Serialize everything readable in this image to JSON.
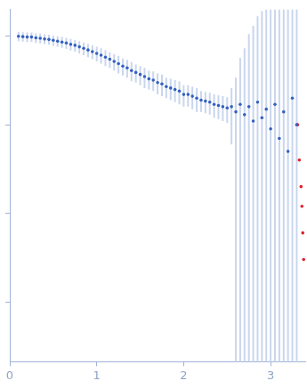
{
  "chart_data": {
    "type": "scatter",
    "log": "y",
    "grid": false,
    "tick_labels": "x",
    "xlim": [
      0,
      3.4
    ],
    "xticks": [
      0,
      1,
      2,
      3
    ],
    "ylim": [
      0.00021,
      2
    ],
    "yticks": [
      0.001,
      0.01,
      0.1,
      1
    ],
    "series": [
      {
        "color": "#3461c1",
        "marker": "circle",
        "x": [
          0.1,
          0.15,
          0.2,
          0.25,
          0.3,
          0.35,
          0.4,
          0.45,
          0.5,
          0.55,
          0.6,
          0.65,
          0.7,
          0.75,
          0.8,
          0.85,
          0.9,
          0.95,
          1.0,
          1.05,
          1.1,
          1.15,
          1.2,
          1.25,
          1.3,
          1.35,
          1.4,
          1.45,
          1.5,
          1.55,
          1.6,
          1.65,
          1.7,
          1.75,
          1.8,
          1.85,
          1.9,
          1.95,
          2.0,
          2.05,
          2.1,
          2.15,
          2.2,
          2.25,
          2.3,
          2.35,
          2.4,
          2.45,
          2.5,
          2.55,
          2.6,
          2.65,
          2.7,
          2.75,
          2.8,
          2.85,
          2.9,
          2.95,
          3.0,
          3.05,
          3.1,
          3.15,
          3.2,
          3.25,
          3.3
        ],
        "values": [
          1.0,
          0.99,
          0.98,
          0.98,
          0.96,
          0.95,
          0.93,
          0.92,
          0.9,
          0.88,
          0.86,
          0.84,
          0.81,
          0.79,
          0.76,
          0.73,
          0.7,
          0.67,
          0.64,
          0.61,
          0.58,
          0.55,
          0.52,
          0.49,
          0.46,
          0.44,
          0.41,
          0.39,
          0.37,
          0.35,
          0.33,
          0.32,
          0.3,
          0.29,
          0.27,
          0.26,
          0.25,
          0.24,
          0.22,
          0.22,
          0.21,
          0.2,
          0.19,
          0.185,
          0.18,
          0.17,
          0.165,
          0.16,
          0.155,
          0.16,
          0.14,
          0.17,
          0.13,
          0.16,
          0.11,
          0.18,
          0.12,
          0.15,
          0.09,
          0.17,
          0.07,
          0.14,
          0.05,
          0.2,
          0.1
        ],
        "errors": [
          0.12,
          0.12,
          0.12,
          0.12,
          0.12,
          0.12,
          0.12,
          0.12,
          0.12,
          0.12,
          0.12,
          0.12,
          0.12,
          0.12,
          0.12,
          0.12,
          0.12,
          0.12,
          0.12,
          0.12,
          0.12,
          0.11,
          0.11,
          0.11,
          0.1,
          0.1,
          0.1,
          0.09,
          0.09,
          0.09,
          0.08,
          0.08,
          0.08,
          0.08,
          0.07,
          0.07,
          0.07,
          0.07,
          0.06,
          0.06,
          0.06,
          0.06,
          0.05,
          0.05,
          0.05,
          0.05,
          0.05,
          0.05,
          0.05,
          0.1,
          0.2,
          0.4,
          0.6,
          0.9,
          1.2,
          1.5,
          1.8,
          2,
          2,
          2,
          2,
          2,
          2,
          2,
          2
        ]
      },
      {
        "color": "#e0202a",
        "marker": "circle",
        "x": [
          3.31,
          3.33,
          3.35,
          3.36,
          3.37,
          3.38
        ],
        "values": [
          0.1,
          0.04,
          0.02,
          0.012,
          0.006,
          0.003
        ]
      }
    ]
  }
}
